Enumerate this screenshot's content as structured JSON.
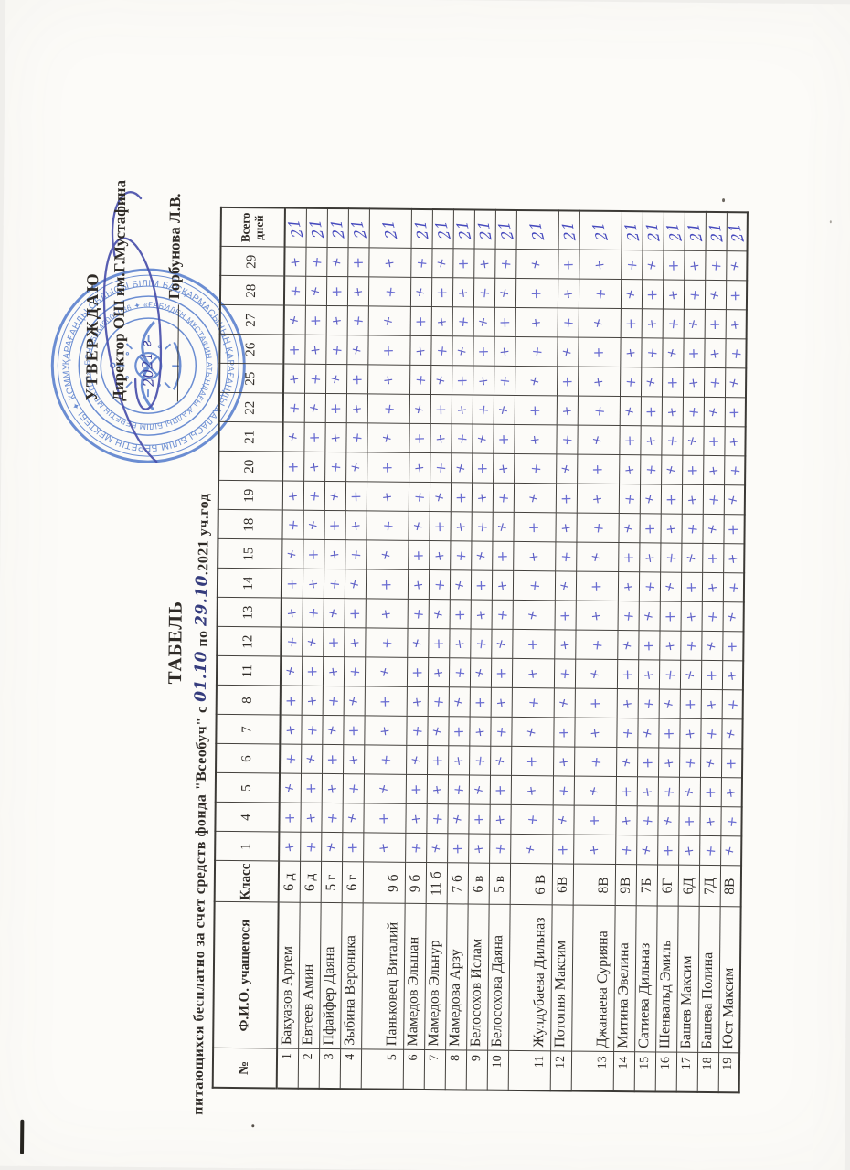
{
  "title": "ТАБЕЛЬ",
  "subtitle": {
    "prefix": "питающихся бесплатно за счет средств фонда \"Всеобуч\" с ",
    "date_from": "01.10",
    "mid": " по ",
    "date_to": "29.10",
    "suffix": ".2021 уч.год"
  },
  "approval": {
    "line1": "УТВЕРЖДАЮ",
    "line2": "Директор ОШ им.Г.Мустафина",
    "signature_name": "Горбунова Л.В.",
    "year_note": "2021 г"
  },
  "stamp": {
    "ring_outer": "ҚАРАҒАНДЫ ОБЛЫСЫ БІЛІМ БАСҚАРМАСЫНЫҢ ҚАРАҒАНДЫ ҚАЛАСЫ БІЛІМ БЕРЕТІН МЕКТЕБІ ✦ КОММУНАЛДЫҚ МЕМЛЕКЕТТІК МЕКЕМЕСІ ✦",
    "ring_inner": "БСН 950640001086 ✦ «ҒАБИДЕН МҰСТАФИН АТЫНДАҒЫ ЖАЛПЫ БІЛІМ БЕРЕТІН МЕКТЕП» ✦"
  },
  "colors": {
    "print_ink": "#2f2b27",
    "plus_mark_ink": "#5d5fc6",
    "total_ink": "#4549bd",
    "stamp_blue": "#4c76ca",
    "signature_ink": "#4a50ac",
    "handwritten_date_ink": "#353c7d"
  },
  "table": {
    "headers": {
      "num": "№",
      "name": "Ф.И.О. учащегося",
      "class": "Класс",
      "days": [
        "1",
        "4",
        "5",
        "6",
        "7",
        "8",
        "11",
        "12",
        "13",
        "14",
        "15",
        "18",
        "19",
        "20",
        "21",
        "22",
        "25",
        "26",
        "27",
        "28",
        "29"
      ],
      "total": "Всего дней"
    },
    "mark": "+",
    "rows": [
      {
        "num": "1",
        "name": "Бакуазов Артем",
        "class": "6 д",
        "total": "21"
      },
      {
        "num": "2",
        "name": "Евтеев Амин",
        "class": "6 д",
        "total": "21"
      },
      {
        "num": "3",
        "name": "Пфайфер Даяна",
        "class": "5 г",
        "total": "21"
      },
      {
        "num": "4",
        "name": "Зыбина Вероника",
        "class": "6 г",
        "total": "21"
      },
      {
        "num": "5",
        "name": "Паньковец Виталий",
        "class": "9 б",
        "total": "21"
      },
      {
        "num": "6",
        "name": "Мамедов Эльшан",
        "class": "9 б",
        "total": "21"
      },
      {
        "num": "7",
        "name": "Мамедов Эльнур",
        "class": "11 б",
        "total": "21"
      },
      {
        "num": "8",
        "name": "Мамедова Арзу",
        "class": "7 б",
        "total": "21"
      },
      {
        "num": "9",
        "name": "Белосохов Ислам",
        "class": "6 в",
        "total": "21"
      },
      {
        "num": "10",
        "name": "Белосохова Даяна",
        "class": "5 в",
        "total": "21"
      },
      {
        "num": "11",
        "name": "Жулдубаева Дильназ",
        "class": "6 В",
        "total": "21"
      },
      {
        "num": "12",
        "name": "Потопня Максим",
        "class": "6В",
        "total": "21"
      },
      {
        "num": "13",
        "name": "Джанаева Сурияна",
        "class": "8В",
        "total": "21"
      },
      {
        "num": "14",
        "name": "Митина Эвелина",
        "class": "9В",
        "total": "21"
      },
      {
        "num": "15",
        "name": "Сатиева Дильназ",
        "class": "7Б",
        "total": "21"
      },
      {
        "num": "16",
        "name": "Шенвальд Эмиль",
        "class": "6Г",
        "total": "21"
      },
      {
        "num": "17",
        "name": "Башев Максим",
        "class": "6Д",
        "total": "21"
      },
      {
        "num": "18",
        "name": "Башева Полина",
        "class": "7Д",
        "total": "21"
      },
      {
        "num": "19",
        "name": "Юст Максим",
        "class": "8В",
        "total": "21"
      }
    ]
  }
}
